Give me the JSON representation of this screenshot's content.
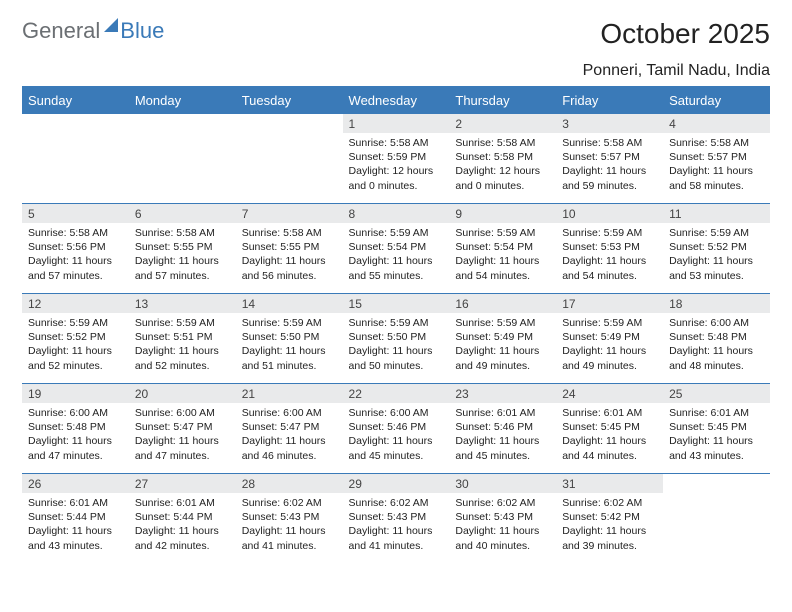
{
  "brand": {
    "left": "General",
    "right": "Blue"
  },
  "title": "October 2025",
  "location": "Ponneri, Tamil Nadu, India",
  "colors": {
    "accent": "#3a7ab8",
    "dayHeaderBg": "#e9eaeb"
  },
  "weekdays": [
    "Sunday",
    "Monday",
    "Tuesday",
    "Wednesday",
    "Thursday",
    "Friday",
    "Saturday"
  ],
  "weeks": [
    [
      null,
      null,
      null,
      {
        "n": "1",
        "sr": "5:58 AM",
        "ss": "5:59 PM",
        "dl": "12 hours and 0 minutes."
      },
      {
        "n": "2",
        "sr": "5:58 AM",
        "ss": "5:58 PM",
        "dl": "12 hours and 0 minutes."
      },
      {
        "n": "3",
        "sr": "5:58 AM",
        "ss": "5:57 PM",
        "dl": "11 hours and 59 minutes."
      },
      {
        "n": "4",
        "sr": "5:58 AM",
        "ss": "5:57 PM",
        "dl": "11 hours and 58 minutes."
      }
    ],
    [
      {
        "n": "5",
        "sr": "5:58 AM",
        "ss": "5:56 PM",
        "dl": "11 hours and 57 minutes."
      },
      {
        "n": "6",
        "sr": "5:58 AM",
        "ss": "5:55 PM",
        "dl": "11 hours and 57 minutes."
      },
      {
        "n": "7",
        "sr": "5:58 AM",
        "ss": "5:55 PM",
        "dl": "11 hours and 56 minutes."
      },
      {
        "n": "8",
        "sr": "5:59 AM",
        "ss": "5:54 PM",
        "dl": "11 hours and 55 minutes."
      },
      {
        "n": "9",
        "sr": "5:59 AM",
        "ss": "5:54 PM",
        "dl": "11 hours and 54 minutes."
      },
      {
        "n": "10",
        "sr": "5:59 AM",
        "ss": "5:53 PM",
        "dl": "11 hours and 54 minutes."
      },
      {
        "n": "11",
        "sr": "5:59 AM",
        "ss": "5:52 PM",
        "dl": "11 hours and 53 minutes."
      }
    ],
    [
      {
        "n": "12",
        "sr": "5:59 AM",
        "ss": "5:52 PM",
        "dl": "11 hours and 52 minutes."
      },
      {
        "n": "13",
        "sr": "5:59 AM",
        "ss": "5:51 PM",
        "dl": "11 hours and 52 minutes."
      },
      {
        "n": "14",
        "sr": "5:59 AM",
        "ss": "5:50 PM",
        "dl": "11 hours and 51 minutes."
      },
      {
        "n": "15",
        "sr": "5:59 AM",
        "ss": "5:50 PM",
        "dl": "11 hours and 50 minutes."
      },
      {
        "n": "16",
        "sr": "5:59 AM",
        "ss": "5:49 PM",
        "dl": "11 hours and 49 minutes."
      },
      {
        "n": "17",
        "sr": "5:59 AM",
        "ss": "5:49 PM",
        "dl": "11 hours and 49 minutes."
      },
      {
        "n": "18",
        "sr": "6:00 AM",
        "ss": "5:48 PM",
        "dl": "11 hours and 48 minutes."
      }
    ],
    [
      {
        "n": "19",
        "sr": "6:00 AM",
        "ss": "5:48 PM",
        "dl": "11 hours and 47 minutes."
      },
      {
        "n": "20",
        "sr": "6:00 AM",
        "ss": "5:47 PM",
        "dl": "11 hours and 47 minutes."
      },
      {
        "n": "21",
        "sr": "6:00 AM",
        "ss": "5:47 PM",
        "dl": "11 hours and 46 minutes."
      },
      {
        "n": "22",
        "sr": "6:00 AM",
        "ss": "5:46 PM",
        "dl": "11 hours and 45 minutes."
      },
      {
        "n": "23",
        "sr": "6:01 AM",
        "ss": "5:46 PM",
        "dl": "11 hours and 45 minutes."
      },
      {
        "n": "24",
        "sr": "6:01 AM",
        "ss": "5:45 PM",
        "dl": "11 hours and 44 minutes."
      },
      {
        "n": "25",
        "sr": "6:01 AM",
        "ss": "5:45 PM",
        "dl": "11 hours and 43 minutes."
      }
    ],
    [
      {
        "n": "26",
        "sr": "6:01 AM",
        "ss": "5:44 PM",
        "dl": "11 hours and 43 minutes."
      },
      {
        "n": "27",
        "sr": "6:01 AM",
        "ss": "5:44 PM",
        "dl": "11 hours and 42 minutes."
      },
      {
        "n": "28",
        "sr": "6:02 AM",
        "ss": "5:43 PM",
        "dl": "11 hours and 41 minutes."
      },
      {
        "n": "29",
        "sr": "6:02 AM",
        "ss": "5:43 PM",
        "dl": "11 hours and 41 minutes."
      },
      {
        "n": "30",
        "sr": "6:02 AM",
        "ss": "5:43 PM",
        "dl": "11 hours and 40 minutes."
      },
      {
        "n": "31",
        "sr": "6:02 AM",
        "ss": "5:42 PM",
        "dl": "11 hours and 39 minutes."
      },
      null
    ]
  ],
  "labels": {
    "sunrise": "Sunrise:",
    "sunset": "Sunset:",
    "daylight": "Daylight:"
  }
}
